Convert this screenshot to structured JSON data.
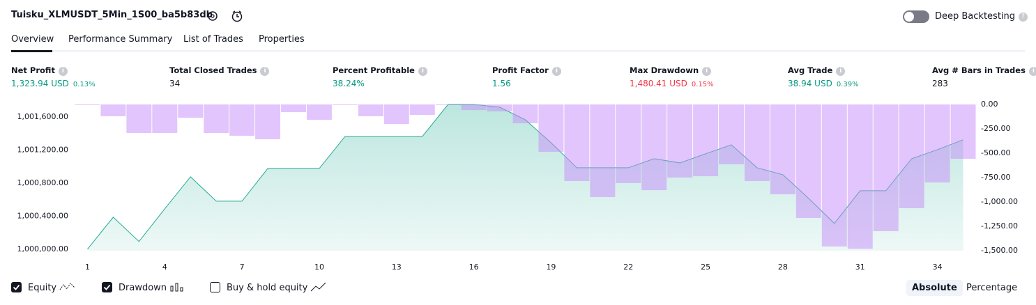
{
  "header": {
    "title": "Tuisku_XLMUSDT_5Min_1S00_ba5b83db",
    "deep_backtesting": "Deep Backtesting"
  },
  "tabs": [
    "Overview",
    "Performance Summary",
    "List of Trades",
    "Properties"
  ],
  "metrics": [
    {
      "label": "Net Profit",
      "value": "1,323.94 USD",
      "percent": "0.13%",
      "tone": "pos"
    },
    {
      "label": "Total Closed Trades",
      "value": "34",
      "tone": "neutral"
    },
    {
      "label": "Percent Profitable",
      "value": "38.24%",
      "tone": "pos"
    },
    {
      "label": "Profit Factor",
      "value": "1.56",
      "tone": "pos"
    },
    {
      "label": "Max Drawdown",
      "value": "1,480.41 USD",
      "percent": "0.15%",
      "tone": "neg"
    },
    {
      "label": "Avg Trade",
      "value": "38.94 USD",
      "percent": "0.39%",
      "tone": "pos"
    },
    {
      "label": "Avg # Bars in Trades",
      "value": "283",
      "tone": "neutral"
    }
  ],
  "chart_data": {
    "type": "combo",
    "x": [
      1,
      2,
      3,
      4,
      5,
      6,
      7,
      8,
      9,
      10,
      11,
      12,
      13,
      14,
      15,
      16,
      17,
      18,
      19,
      20,
      21,
      22,
      23,
      24,
      25,
      26,
      27,
      28,
      29,
      30,
      31,
      32,
      33,
      34,
      35
    ],
    "xlim": [
      0.5,
      35.5
    ],
    "xticks": [
      1,
      4,
      7,
      10,
      13,
      16,
      19,
      22,
      25,
      28,
      31,
      34
    ],
    "ylim": [
      999982,
      1001751
    ],
    "yticks": [
      {
        "value": 1000000,
        "label": "1,000,000.00"
      },
      {
        "value": 1000400,
        "label": "1,000,400.00"
      },
      {
        "value": 1000800,
        "label": "1,000,800.00"
      },
      {
        "value": 1001200,
        "label": "1,001,200.00"
      },
      {
        "value": 1001600,
        "label": "1,001,600.00"
      }
    ],
    "y2lim": [
      -1500,
      0
    ],
    "y2ticks": [
      {
        "value": 0,
        "label": "0.00"
      },
      {
        "value": -250,
        "label": "-250.00"
      },
      {
        "value": -500,
        "label": "-500.00"
      },
      {
        "value": -750,
        "label": "-750.00"
      },
      {
        "value": -1000,
        "label": "-1,000.00"
      },
      {
        "value": -1250,
        "label": "-1,250.00"
      },
      {
        "value": -1500,
        "label": "-1,500.00"
      }
    ],
    "series": [
      {
        "name": "Equity",
        "type": "area",
        "color": "#22ab94",
        "values": [
          1000000,
          1000387,
          1000093,
          1000488,
          1000876,
          1000581,
          1000581,
          1000977,
          1000977,
          1000977,
          1001364,
          1001364,
          1001364,
          1001364,
          1001751,
          1001751,
          1001718,
          1001566,
          1001288,
          1000985,
          1000985,
          1000985,
          1001095,
          1001044,
          1001154,
          1001263,
          1000985,
          1000901,
          1000615,
          1000312,
          1000707,
          1000707,
          1001095,
          1001204,
          1001323.94
        ]
      },
      {
        "name": "Drawdown",
        "type": "bar",
        "axis": "y2",
        "color": "#c58cf9",
        "values": [
          0,
          -121,
          -293,
          -293,
          -136,
          -293,
          -321,
          -357,
          -79,
          -157,
          0,
          -121,
          -200,
          -107,
          0,
          -57,
          -71,
          -193,
          -486,
          -786,
          -950,
          -807,
          -879,
          -750,
          -736,
          -614,
          -786,
          -921,
          -1164,
          -1457,
          -1480.41,
          -1300,
          -1064,
          -800,
          -557
        ]
      }
    ]
  },
  "controls": {
    "buy_hold": "Buy & hold equity",
    "absolute": "Absolute",
    "percentage": "Percentage"
  }
}
